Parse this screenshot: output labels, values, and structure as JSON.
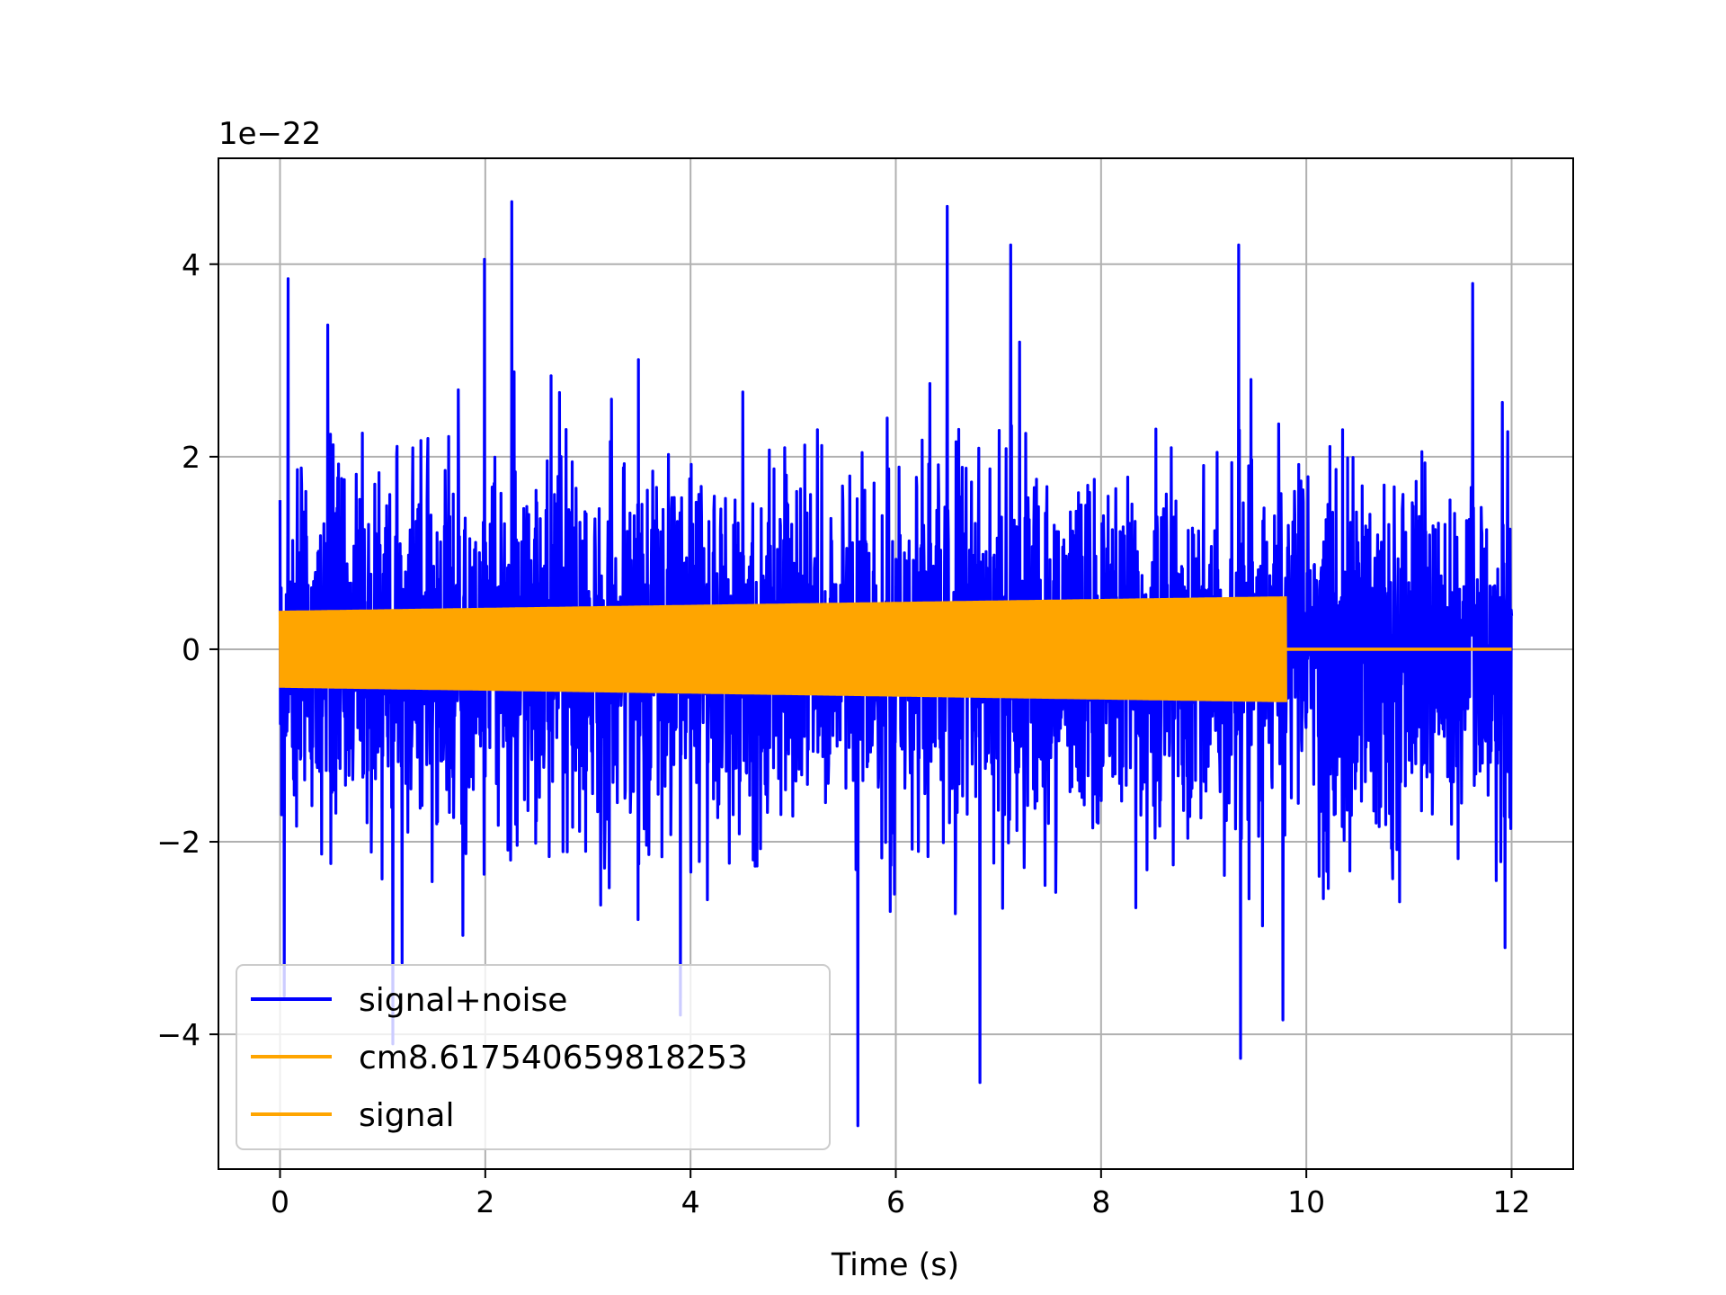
{
  "chart_data": {
    "type": "line",
    "title": "",
    "xlabel": "Time (s)",
    "ylabel": "",
    "y_offset_label": "1e−22",
    "xlim": [
      -0.6,
      12.6
    ],
    "ylim": [
      -5.4,
      5.1
    ],
    "xticks": [
      0,
      2,
      4,
      6,
      8,
      10,
      12
    ],
    "yticks": [
      -4,
      -2,
      0,
      2,
      4
    ],
    "xtick_labels": [
      "0",
      "2",
      "4",
      "6",
      "8",
      "10",
      "12"
    ],
    "ytick_labels": [
      "−4",
      "−2",
      "0",
      "2",
      "4"
    ],
    "grid": true,
    "legend_position": "lower-left",
    "series": [
      {
        "name": "signal+noise",
        "color": "#0000ff",
        "kind": "noise-band",
        "x_range": [
          0,
          12
        ],
        "typical_envelope": [
          -2.0,
          2.2
        ],
        "extreme_peaks": [
          {
            "x": 0.08,
            "y": 3.85
          },
          {
            "x": 1.99,
            "y": 4.05
          },
          {
            "x": 2.26,
            "y": 4.65
          },
          {
            "x": 6.5,
            "y": 4.6
          },
          {
            "x": 7.12,
            "y": 4.2
          },
          {
            "x": 9.34,
            "y": 4.2
          },
          {
            "x": 11.62,
            "y": 3.8
          },
          {
            "x": 5.63,
            "y": -4.95
          },
          {
            "x": 6.82,
            "y": -4.5
          },
          {
            "x": 9.36,
            "y": -4.25
          },
          {
            "x": 1.1,
            "y": -4.1
          },
          {
            "x": 0.04,
            "y": -3.6
          },
          {
            "x": 3.9,
            "y": -3.8
          },
          {
            "x": 9.77,
            "y": -3.85
          }
        ]
      },
      {
        "name": "cm8.617540659818253",
        "color": "#ffa500",
        "kind": "chirp-envelope",
        "x": [
          0,
          9.8
        ],
        "amplitude_start": 0.4,
        "amplitude_end": 0.55
      },
      {
        "name": "signal",
        "color": "#ffa500",
        "kind": "flat",
        "x": [
          9.8,
          12
        ],
        "y": [
          0,
          0
        ]
      }
    ]
  }
}
